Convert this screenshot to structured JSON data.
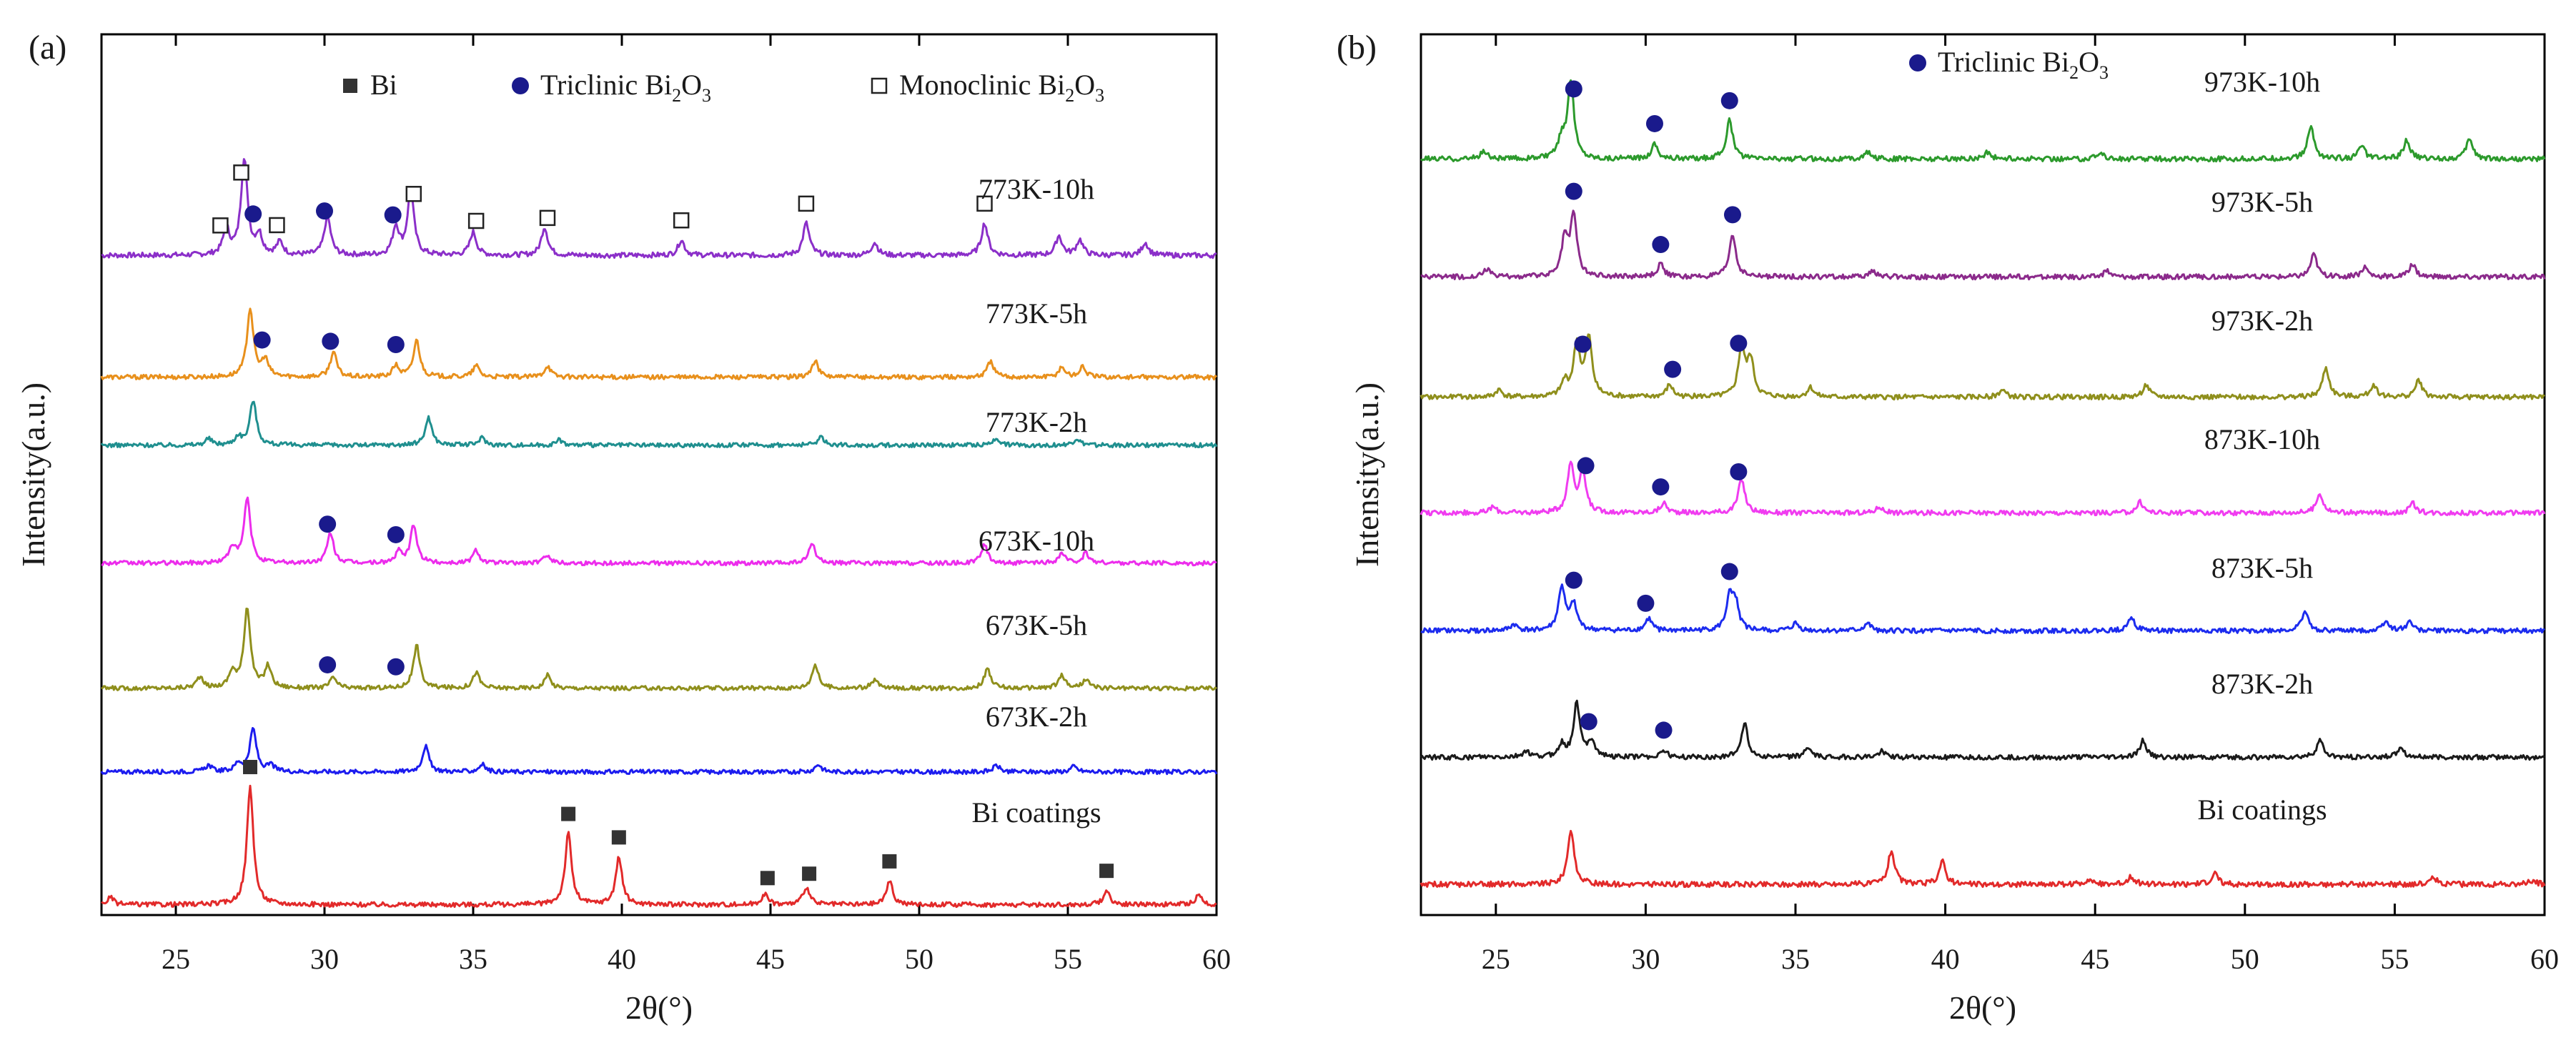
{
  "chart_data": [
    {
      "id": "a",
      "type": "line",
      "panel_label": "(a)",
      "xlabel": "2θ(°)",
      "ylabel": "Intensity(a.u.)",
      "xlim": [
        22.5,
        60
      ],
      "xticks": [
        25,
        30,
        35,
        40,
        45,
        50,
        55,
        60
      ],
      "grid": false,
      "legend": [
        {
          "marker": "filled-square",
          "text": "Bi",
          "color": "#333333"
        },
        {
          "marker": "filled-circle",
          "text": "Triclinic Bi",
          "sub": "2",
          "text2": "O",
          "sub2": "3",
          "color": "#1f1f9a"
        },
        {
          "marker": "open-square",
          "text": "Monoclinic Bi",
          "sub": "2",
          "text2": "O",
          "sub2": "3",
          "color": "#333333"
        }
      ],
      "series": [
        {
          "name": "773K-10h",
          "color": "#8b2fc9",
          "peaks": [
            [
              26.7,
              20
            ],
            [
              27.3,
              75
            ],
            [
              27.8,
              15
            ],
            [
              28.5,
              10
            ],
            [
              30.1,
              30
            ],
            [
              32.4,
              22
            ],
            [
              32.9,
              50
            ],
            [
              35.0,
              18
            ],
            [
              37.4,
              22
            ],
            [
              42.0,
              12
            ],
            [
              46.2,
              25
            ],
            [
              48.5,
              10
            ],
            [
              52.2,
              25
            ],
            [
              54.7,
              15
            ],
            [
              55.4,
              12
            ],
            [
              57.6,
              10
            ]
          ],
          "markers": [
            {
              "x": 26.5,
              "type": "open-square"
            },
            {
              "x": 27.2,
              "type": "open-square"
            },
            {
              "x": 27.6,
              "type": "filled-circle"
            },
            {
              "x": 28.4,
              "type": "open-square"
            },
            {
              "x": 30.0,
              "type": "filled-circle"
            },
            {
              "x": 32.3,
              "type": "filled-circle"
            },
            {
              "x": 33.0,
              "type": "open-square"
            },
            {
              "x": 35.1,
              "type": "open-square"
            },
            {
              "x": 37.5,
              "type": "open-square"
            },
            {
              "x": 42.0,
              "type": "open-square"
            },
            {
              "x": 46.2,
              "type": "open-square"
            },
            {
              "x": 52.2,
              "type": "open-square"
            }
          ]
        },
        {
          "name": "773K-5h",
          "color": "#e8901c",
          "peaks": [
            [
              27.5,
              60
            ],
            [
              28.0,
              15
            ],
            [
              30.3,
              22
            ],
            [
              32.4,
              10
            ],
            [
              33.1,
              32
            ],
            [
              35.1,
              10
            ],
            [
              37.5,
              10
            ],
            [
              46.5,
              14
            ],
            [
              52.4,
              14
            ],
            [
              54.8,
              9
            ],
            [
              55.5,
              9
            ]
          ],
          "markers": [
            {
              "x": 27.9,
              "type": "filled-circle"
            },
            {
              "x": 30.2,
              "type": "filled-circle"
            },
            {
              "x": 32.4,
              "type": "filled-circle"
            }
          ]
        },
        {
          "name": "773K-2h",
          "color": "#1f8f8f",
          "peaks": [
            [
              26.1,
              6
            ],
            [
              27.1,
              8
            ],
            [
              27.6,
              42
            ],
            [
              33.5,
              26
            ],
            [
              35.3,
              7
            ],
            [
              37.9,
              5
            ],
            [
              46.7,
              8
            ],
            [
              52.6,
              7
            ],
            [
              55.3,
              6
            ]
          ],
          "markers": []
        },
        {
          "name": "673K-10h",
          "color": "#ec2cec",
          "peaks": [
            [
              26.9,
              15
            ],
            [
              27.4,
              60
            ],
            [
              30.2,
              28
            ],
            [
              33.0,
              35
            ],
            [
              32.5,
              10
            ],
            [
              35.1,
              12
            ],
            [
              37.5,
              8
            ],
            [
              46.4,
              18
            ],
            [
              52.2,
              17
            ],
            [
              54.8,
              9
            ],
            [
              55.6,
              9
            ]
          ],
          "markers": [
            {
              "x": 30.1,
              "type": "filled-circle"
            },
            {
              "x": 32.4,
              "type": "filled-circle"
            }
          ]
        },
        {
          "name": "673K-5h",
          "color": "#8f8f1c",
          "peaks": [
            [
              25.8,
              10
            ],
            [
              26.9,
              15
            ],
            [
              27.4,
              75
            ],
            [
              28.1,
              20
            ],
            [
              30.3,
              10
            ],
            [
              33.1,
              40
            ],
            [
              35.1,
              15
            ],
            [
              37.5,
              12
            ],
            [
              46.5,
              22
            ],
            [
              48.5,
              8
            ],
            [
              52.3,
              18
            ],
            [
              54.8,
              12
            ],
            [
              55.6,
              8
            ]
          ],
          "markers": [
            {
              "x": 30.1,
              "type": "filled-circle"
            },
            {
              "x": 32.4,
              "type": "filled-circle"
            }
          ]
        },
        {
          "name": "673K-2h",
          "color": "#1c1cef",
          "peaks": [
            [
              26.1,
              6
            ],
            [
              27.1,
              8
            ],
            [
              27.6,
              40
            ],
            [
              28.2,
              6
            ],
            [
              33.4,
              24
            ],
            [
              35.3,
              7
            ],
            [
              46.6,
              7
            ],
            [
              52.6,
              6
            ],
            [
              55.2,
              5
            ]
          ],
          "markers": []
        },
        {
          "name": "Bi coatings",
          "color": "#e22a2a",
          "peaks": [
            [
              22.8,
              6
            ],
            [
              27.5,
              100
            ],
            [
              38.2,
              60
            ],
            [
              39.9,
              40
            ],
            [
              44.8,
              9
            ],
            [
              46.2,
              15
            ],
            [
              49.0,
              20
            ],
            [
              56.3,
              12
            ],
            [
              59.4,
              8
            ]
          ],
          "markers": [
            {
              "x": 27.5,
              "type": "filled-square"
            },
            {
              "x": 38.2,
              "type": "filled-square"
            },
            {
              "x": 39.9,
              "type": "filled-square"
            },
            {
              "x": 44.9,
              "type": "filled-square"
            },
            {
              "x": 46.3,
              "type": "filled-square"
            },
            {
              "x": 49.0,
              "type": "filled-square"
            },
            {
              "x": 56.3,
              "type": "filled-square"
            }
          ]
        }
      ]
    },
    {
      "id": "b",
      "type": "line",
      "panel_label": "(b)",
      "xlabel": "2θ(°)",
      "ylabel": "Intensity(a.u.)",
      "xlim": [
        22.5,
        60
      ],
      "xticks": [
        25,
        30,
        35,
        40,
        45,
        50,
        55,
        60
      ],
      "grid": false,
      "legend": [
        {
          "marker": "filled-circle",
          "text": "Triclinic Bi",
          "sub": "2",
          "text2": "O",
          "sub2": "3",
          "color": "#1a1a40"
        }
      ],
      "series": [
        {
          "name": "973K-10h",
          "color": "#2c9a2c",
          "peaks": [
            [
              24.6,
              6
            ],
            [
              27.2,
              15
            ],
            [
              27.5,
              60
            ],
            [
              30.3,
              12
            ],
            [
              32.8,
              30
            ],
            [
              37.4,
              5
            ],
            [
              41.4,
              5
            ],
            [
              45.2,
              5
            ],
            [
              52.2,
              25
            ],
            [
              53.9,
              10
            ],
            [
              55.4,
              14
            ],
            [
              57.5,
              16
            ]
          ],
          "markers": [
            {
              "x": 27.6,
              "type": "filled-circle"
            },
            {
              "x": 30.3,
              "type": "filled-circle"
            },
            {
              "x": 32.8,
              "type": "filled-circle"
            }
          ]
        },
        {
          "name": "973K-5h",
          "color": "#8b2a8b",
          "peaks": [
            [
              24.7,
              6
            ],
            [
              27.3,
              30
            ],
            [
              27.6,
              48
            ],
            [
              30.5,
              10
            ],
            [
              32.9,
              34
            ],
            [
              37.6,
              5
            ],
            [
              45.4,
              5
            ],
            [
              52.3,
              18
            ],
            [
              54.0,
              8
            ],
            [
              55.6,
              10
            ]
          ],
          "markers": [
            {
              "x": 27.6,
              "type": "filled-circle"
            },
            {
              "x": 30.5,
              "type": "filled-circle"
            },
            {
              "x": 32.9,
              "type": "filled-circle"
            }
          ]
        },
        {
          "name": "973K-2h",
          "color": "#8f8f1c",
          "peaks": [
            [
              25.1,
              6
            ],
            [
              27.3,
              12
            ],
            [
              27.7,
              42
            ],
            [
              28.1,
              48
            ],
            [
              30.8,
              10
            ],
            [
              33.2,
              40
            ],
            [
              33.5,
              30
            ],
            [
              35.5,
              8
            ],
            [
              41.9,
              6
            ],
            [
              46.7,
              10
            ],
            [
              52.7,
              24
            ],
            [
              54.3,
              10
            ],
            [
              55.8,
              14
            ]
          ],
          "markers": [
            {
              "x": 27.9,
              "type": "filled-circle"
            },
            {
              "x": 30.9,
              "type": "filled-circle"
            },
            {
              "x": 33.1,
              "type": "filled-circle"
            }
          ]
        },
        {
          "name": "873K-10h",
          "color": "#f03cf0",
          "peaks": [
            [
              24.9,
              5
            ],
            [
              27.5,
              40
            ],
            [
              27.9,
              32
            ],
            [
              30.6,
              8
            ],
            [
              33.2,
              28
            ],
            [
              37.8,
              5
            ],
            [
              46.5,
              9
            ],
            [
              52.5,
              16
            ],
            [
              55.6,
              8
            ]
          ],
          "markers": [
            {
              "x": 28.0,
              "type": "filled-circle"
            },
            {
              "x": 30.5,
              "type": "filled-circle"
            },
            {
              "x": 33.1,
              "type": "filled-circle"
            }
          ]
        },
        {
          "name": "873K-5h",
          "color": "#1c2cef",
          "peaks": [
            [
              25.6,
              5
            ],
            [
              27.2,
              36
            ],
            [
              27.6,
              22
            ],
            [
              30.1,
              10
            ],
            [
              32.8,
              26
            ],
            [
              33.0,
              22
            ],
            [
              35.0,
              6
            ],
            [
              37.4,
              6
            ],
            [
              46.2,
              12
            ],
            [
              52.0,
              16
            ],
            [
              54.7,
              8
            ],
            [
              55.5,
              8
            ]
          ],
          "markers": [
            {
              "x": 27.6,
              "type": "filled-circle"
            },
            {
              "x": 30.0,
              "type": "filled-circle"
            },
            {
              "x": 32.8,
              "type": "filled-circle"
            }
          ]
        },
        {
          "name": "873K-2h",
          "color": "#1a1a1a",
          "peaks": [
            [
              26.0,
              5
            ],
            [
              27.2,
              10
            ],
            [
              27.7,
              44
            ],
            [
              28.2,
              14
            ],
            [
              30.6,
              6
            ],
            [
              33.3,
              28
            ],
            [
              35.4,
              8
            ],
            [
              37.9,
              5
            ],
            [
              46.6,
              14
            ],
            [
              52.5,
              14
            ],
            [
              55.2,
              9
            ]
          ],
          "markers": [
            {
              "x": 28.1,
              "type": "filled-circle"
            },
            {
              "x": 30.6,
              "type": "filled-circle"
            }
          ]
        },
        {
          "name": "Bi coatings",
          "color": "#e22a2a",
          "peaks": [
            [
              27.5,
              40
            ],
            [
              38.2,
              25
            ],
            [
              39.9,
              17
            ],
            [
              44.8,
              4
            ],
            [
              46.2,
              6
            ],
            [
              49.0,
              8
            ],
            [
              56.3,
              5
            ],
            [
              59.6,
              3
            ]
          ],
          "markers": []
        }
      ]
    }
  ]
}
